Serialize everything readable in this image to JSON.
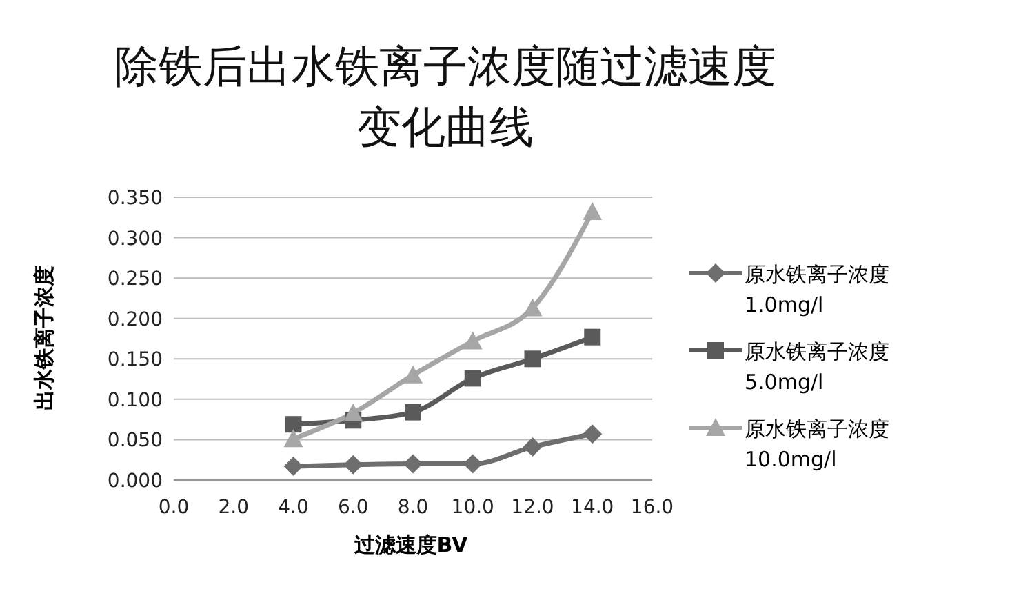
{
  "chart_data": {
    "type": "line",
    "title": "除铁后出水铁离子浓度随过滤速度变化曲线",
    "xlabel": "过滤速度BV",
    "ylabel": "出水铁离子浓度",
    "x": [
      4,
      6,
      8,
      10,
      12,
      14
    ],
    "series": [
      {
        "name": "原水铁离子浓度 1.0mg/l",
        "color": "#6e6e6e",
        "marker": "diamond",
        "values": [
          0.017,
          0.019,
          0.02,
          0.02,
          0.041,
          0.057
        ]
      },
      {
        "name": "原水铁离子浓度 5.0mg/l",
        "color": "#5a5a5a",
        "marker": "square",
        "values": [
          0.069,
          0.074,
          0.084,
          0.126,
          0.15,
          0.177
        ]
      },
      {
        "name": "原水铁离子浓度 10.0mg/l",
        "color": "#a6a6a6",
        "marker": "triangle",
        "values": [
          0.051,
          0.083,
          0.13,
          0.172,
          0.213,
          0.332
        ]
      }
    ],
    "xlim": [
      0,
      16
    ],
    "xticks": [
      {
        "value": 0,
        "label": "0.0"
      },
      {
        "value": 2,
        "label": "2.0"
      },
      {
        "value": 4,
        "label": "4.0"
      },
      {
        "value": 6,
        "label": "6.0"
      },
      {
        "value": 8,
        "label": "8.0"
      },
      {
        "value": 10,
        "label": "10.0"
      },
      {
        "value": 12,
        "label": "12.0"
      },
      {
        "value": 14,
        "label": "14.0"
      },
      {
        "value": 16,
        "label": "16.0"
      }
    ],
    "ylim": [
      0,
      0.35
    ],
    "yticks": [
      {
        "value": 0,
        "label": "0.000"
      },
      {
        "value": 0.05,
        "label": "0.050"
      },
      {
        "value": 0.1,
        "label": "0.100"
      },
      {
        "value": 0.15,
        "label": "0.150"
      },
      {
        "value": 0.2,
        "label": "0.200"
      },
      {
        "value": 0.25,
        "label": "0.250"
      },
      {
        "value": 0.3,
        "label": "0.300"
      },
      {
        "value": 0.35,
        "label": "0.350"
      }
    ],
    "grid": "y",
    "legend": "right",
    "line_style": "solid"
  }
}
